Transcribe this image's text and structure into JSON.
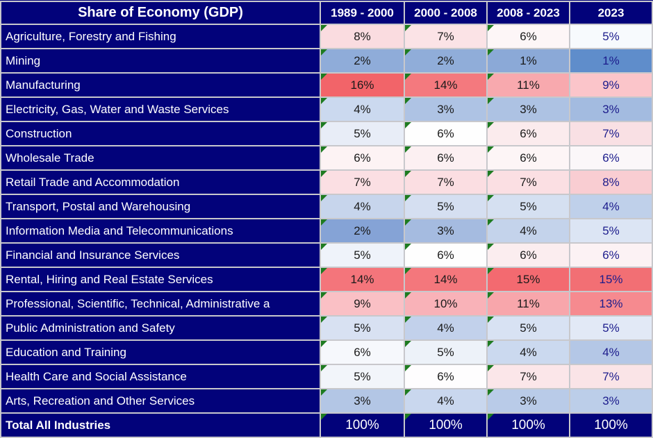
{
  "header": {
    "title": "Share of Economy (GDP)",
    "columns": [
      "1989 - 2000",
      "2000 - 2008",
      "2008 - 2023",
      "2023"
    ]
  },
  "colors": {
    "canvas_navy": "#03037B",
    "cell_navy": "#02027A",
    "grid_line": "#C8C8CC",
    "header_text": "#FFFFFF",
    "value_text": "#1A1A1A",
    "value_text_2023_col": "#1C1C8C",
    "error_indicator_green": "#1E7B21",
    "heat_high_red": "#F26469",
    "heat_low_blue": "#5F8DCB"
  },
  "rows": [
    {
      "label": "Agriculture, Forestry and Fishing",
      "values": [
        "8%",
        "7%",
        "6%",
        "5%"
      ],
      "fills": [
        "#FADCE0",
        "#FBE3E6",
        "#FDF6F7",
        "#F7FAFD"
      ]
    },
    {
      "label": "Mining",
      "values": [
        "2%",
        "2%",
        "1%",
        "1%"
      ],
      "fills": [
        "#8FACD9",
        "#90ADD9",
        "#8BA9D7",
        "#5F8DCB"
      ]
    },
    {
      "label": "Manufacturing",
      "values": [
        "16%",
        "14%",
        "11%",
        "9%"
      ],
      "fills": [
        "#F26469",
        "#F4797E",
        "#F8A9AE",
        "#FBC5CA"
      ]
    },
    {
      "label": "Electricity, Gas, Water and Waste Services",
      "values": [
        "4%",
        "3%",
        "3%",
        "3%"
      ],
      "fills": [
        "#CBD9EF",
        "#AEC3E4",
        "#ADC2E3",
        "#A3BBE0"
      ]
    },
    {
      "label": "Construction",
      "values": [
        "5%",
        "6%",
        "6%",
        "7%"
      ],
      "fills": [
        "#E8EDF7",
        "#FEFEFE",
        "#FBEBED",
        "#F9E0E4"
      ]
    },
    {
      "label": "Wholesale Trade",
      "values": [
        "6%",
        "6%",
        "6%",
        "6%"
      ],
      "fills": [
        "#FDF3F4",
        "#FCF0F2",
        "#FDF5F6",
        "#FBF7F9"
      ]
    },
    {
      "label": "Retail Trade and Accommodation",
      "values": [
        "7%",
        "7%",
        "7%",
        "8%"
      ],
      "fills": [
        "#FBDFE3",
        "#FBDEE2",
        "#FBDFE3",
        "#F9CDD2"
      ]
    },
    {
      "label": "Transport, Postal and Warehousing",
      "values": [
        "4%",
        "5%",
        "5%",
        "4%"
      ],
      "fills": [
        "#C7D5EC",
        "#D5DFF1",
        "#D5E0F1",
        "#BFD0EA"
      ]
    },
    {
      "label": "Information Media and Telecommunications",
      "values": [
        "2%",
        "3%",
        "4%",
        "5%"
      ],
      "fills": [
        "#85A3D6",
        "#A5BBE0",
        "#C4D3EB",
        "#DCE5F4"
      ]
    },
    {
      "label": "Financial and Insurance Services",
      "values": [
        "5%",
        "6%",
        "6%",
        "6%"
      ],
      "fills": [
        "#EFF3FA",
        "#FEFEFE",
        "#FBEDEF",
        "#FCF2F4"
      ]
    },
    {
      "label": "Rental, Hiring and Real Estate Services",
      "values": [
        "14%",
        "14%",
        "15%",
        "15%"
      ],
      "fills": [
        "#F4757B",
        "#F4777C",
        "#F36A70",
        "#F26F74"
      ]
    },
    {
      "label": "Professional, Scientific, Technical, Administrative a",
      "values": [
        "9%",
        "10%",
        "11%",
        "13%"
      ],
      "fills": [
        "#FAC0C5",
        "#F9B2B8",
        "#F8A6AB",
        "#F68A8F"
      ]
    },
    {
      "label": "Public Administration and Safety",
      "values": [
        "5%",
        "4%",
        "5%",
        "5%"
      ],
      "fills": [
        "#D8E1F2",
        "#C2D1EB",
        "#D8E2F3",
        "#E2E9F6"
      ]
    },
    {
      "label": "Education and Training",
      "values": [
        "6%",
        "5%",
        "4%",
        "4%"
      ],
      "fills": [
        "#F6F8FC",
        "#EDF2F9",
        "#CBD9EF",
        "#B4C7E6"
      ]
    },
    {
      "label": "Health Care and Social Assistance",
      "values": [
        "5%",
        "6%",
        "7%",
        "7%"
      ],
      "fills": [
        "#F2F5FA",
        "#FEFDFE",
        "#FBE6E9",
        "#FAE4E7"
      ]
    },
    {
      "label": "Arts, Recreation and Other Services",
      "values": [
        "3%",
        "4%",
        "3%",
        "3%"
      ],
      "fills": [
        "#B3C6E5",
        "#C9D7EE",
        "#B9CBE8",
        "#BCCEE9"
      ]
    }
  ],
  "total_row": {
    "label": "Total All Industries",
    "values": [
      "100%",
      "100%",
      "100%",
      "100%"
    ]
  },
  "chart_data": {
    "type": "table",
    "title": "Share of Economy (GDP)",
    "unit": "%",
    "categories": [
      "Agriculture, Forestry and Fishing",
      "Mining",
      "Manufacturing",
      "Electricity, Gas, Water and Waste Services",
      "Construction",
      "Wholesale Trade",
      "Retail Trade and Accommodation",
      "Transport, Postal and Warehousing",
      "Information Media and Telecommunications",
      "Financial and Insurance Services",
      "Rental, Hiring and Real Estate Services",
      "Professional, Scientific, Technical, Administrative a",
      "Public Administration and Safety",
      "Education and Training",
      "Health Care and Social Assistance",
      "Arts, Recreation and Other Services",
      "Total All Industries"
    ],
    "series": [
      {
        "name": "1989 - 2000",
        "values": [
          8,
          2,
          16,
          4,
          5,
          6,
          7,
          4,
          2,
          5,
          14,
          9,
          5,
          6,
          5,
          3,
          100
        ]
      },
      {
        "name": "2000 - 2008",
        "values": [
          7,
          2,
          14,
          3,
          6,
          6,
          7,
          5,
          3,
          6,
          14,
          10,
          4,
          5,
          6,
          4,
          100
        ]
      },
      {
        "name": "2008 - 2023",
        "values": [
          6,
          1,
          11,
          3,
          6,
          6,
          7,
          5,
          4,
          6,
          15,
          11,
          5,
          4,
          7,
          3,
          100
        ]
      },
      {
        "name": "2023",
        "values": [
          5,
          1,
          9,
          3,
          7,
          6,
          8,
          4,
          5,
          6,
          15,
          13,
          5,
          4,
          7,
          3,
          100
        ]
      }
    ],
    "style_notes": "heatmap cell shading: red = high share, blue = low share; green Excel error-indicator triangles on first three value columns; 2023 column values in navy text"
  }
}
